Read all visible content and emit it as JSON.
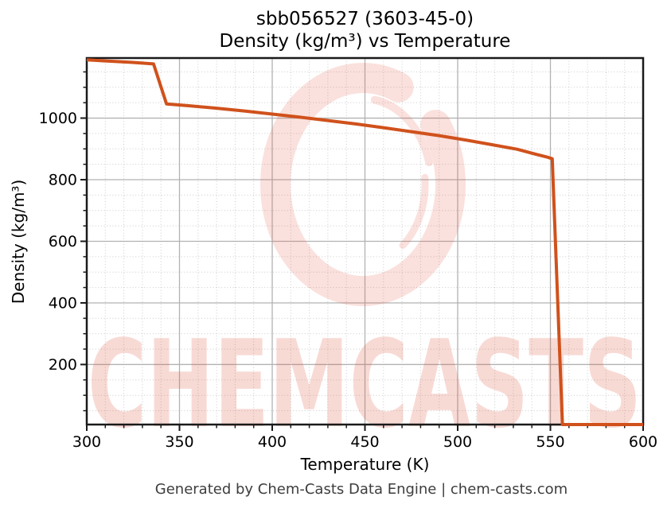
{
  "title": {
    "line1": "sbb056527 (3603-45-0)",
    "line2": "Density (kg/m³) vs Temperature"
  },
  "footer_text": "Generated by Chem-Casts Data Engine | chem-casts.com",
  "watermark": {
    "text": "CHEMCASTS",
    "color": "#e05038",
    "text_opacity": 0.21,
    "swirl_opacity": 0.17
  },
  "chart_data": {
    "type": "line",
    "title": "sbb056527 (3603-45-0) — Density (kg/m³) vs Temperature",
    "xlabel": "Temperature (K)",
    "ylabel": "Density (kg/m³)",
    "xlim": [
      300,
      600
    ],
    "ylim": [
      5,
      1195
    ],
    "x_major_ticks": [
      300,
      350,
      400,
      450,
      500,
      550,
      600
    ],
    "x_minor_step": 10,
    "y_major_ticks": [
      200,
      400,
      600,
      800,
      1000
    ],
    "y_minor_step": 50,
    "grid": "major-solid, minor-dotted",
    "legend": "none",
    "line_color": "#d0511c",
    "line_width": 4,
    "series": [
      {
        "name": "Density",
        "points": [
          [
            300,
            1189
          ],
          [
            312,
            1185
          ],
          [
            324,
            1181
          ],
          [
            336,
            1176
          ],
          [
            343,
            1046
          ],
          [
            355,
            1040
          ],
          [
            370,
            1032
          ],
          [
            385,
            1023
          ],
          [
            400,
            1013
          ],
          [
            415,
            1003
          ],
          [
            430,
            992
          ],
          [
            445,
            981
          ],
          [
            460,
            969
          ],
          [
            475,
            956
          ],
          [
            490,
            943
          ],
          [
            505,
            928
          ],
          [
            520,
            912
          ],
          [
            532,
            899
          ],
          [
            542,
            883
          ],
          [
            548,
            874
          ],
          [
            551,
            868
          ],
          [
            556.5,
            5
          ],
          [
            600,
            5
          ]
        ]
      }
    ]
  }
}
